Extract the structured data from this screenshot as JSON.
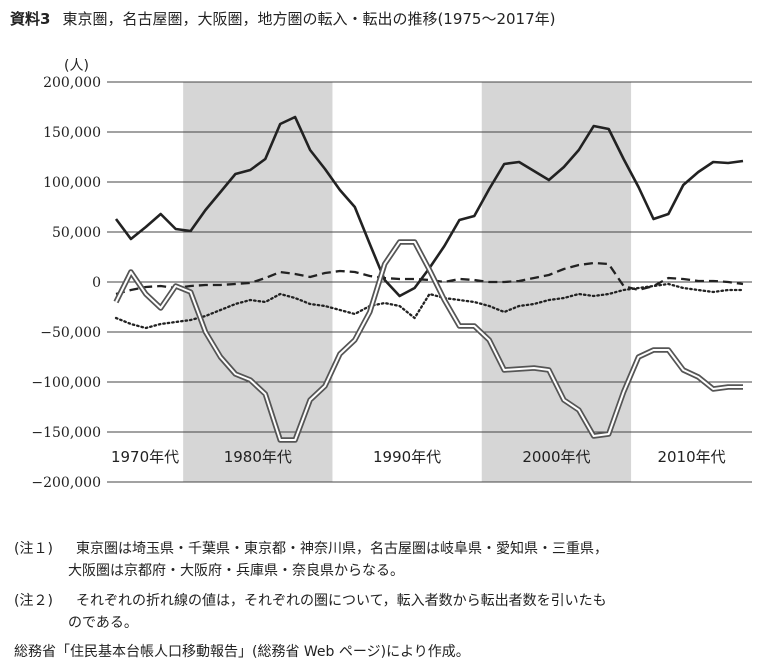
{
  "header": {
    "label": "資料3",
    "title": "東京圏，名古屋圏，大阪圏，地方圏の転入・転出の推移(1975～2017年)"
  },
  "chart_data": {
    "type": "line",
    "ylabel": "(人)",
    "ylim": [
      -200000,
      200000
    ],
    "yticks": [
      200000,
      150000,
      100000,
      50000,
      0,
      -50000,
      -100000,
      -150000,
      -200000
    ],
    "ytick_labels": [
      "200,000",
      "150,000",
      "100,000",
      "50,000",
      "0",
      "−50,000",
      "−100,000",
      "−150,000",
      "−200,000"
    ],
    "xlim": [
      1974.4,
      2017.6
    ],
    "x": [
      1975,
      1976,
      1977,
      1978,
      1979,
      1980,
      1981,
      1982,
      1983,
      1984,
      1985,
      1986,
      1987,
      1988,
      1989,
      1990,
      1991,
      1992,
      1993,
      1994,
      1995,
      1996,
      1997,
      1998,
      1999,
      2000,
      2001,
      2002,
      2003,
      2004,
      2005,
      2006,
      2007,
      2008,
      2009,
      2010,
      2011,
      2012,
      2013,
      2014,
      2015,
      2016,
      2017
    ],
    "decades": [
      {
        "label": "1970年代",
        "from": 1974.4,
        "to": 1979.5
      },
      {
        "label": "1980年代",
        "from": 1979.5,
        "to": 1989.5
      },
      {
        "label": "1990年代",
        "from": 1989.5,
        "to": 1999.5
      },
      {
        "label": "2000年代",
        "from": 1999.5,
        "to": 2009.5
      },
      {
        "label": "2010年代",
        "from": 2009.5,
        "to": 2017.6
      }
    ],
    "shaded": [
      [
        1979.5,
        1989.5
      ],
      [
        1999.5,
        2009.5
      ]
    ],
    "series": [
      {
        "name": "東京圏",
        "style": "solid",
        "values": [
          63000,
          43000,
          55000,
          68000,
          53000,
          51000,
          72000,
          90000,
          108000,
          112000,
          123000,
          158000,
          165000,
          132000,
          113000,
          92000,
          75000,
          38000,
          2000,
          -14000,
          -6000,
          14000,
          36000,
          62000,
          66000,
          93000,
          118000,
          120000,
          111000,
          102000,
          115000,
          132000,
          156000,
          153000,
          123000,
          95000,
          63000,
          68000,
          97000,
          110000,
          120000,
          119000,
          121000
        ]
      },
      {
        "name": "名古屋圏",
        "style": "dashed",
        "values": [
          -12000,
          -8000,
          -5000,
          -4000,
          -6000,
          -4000,
          -3000,
          -3000,
          -2000,
          -1000,
          4000,
          10000,
          8000,
          5000,
          9000,
          11000,
          10000,
          6000,
          4000,
          3000,
          3000,
          2000,
          0,
          3000,
          2000,
          0,
          0,
          1000,
          4000,
          7000,
          13000,
          17000,
          19000,
          18000,
          -4000,
          -8000,
          -4000,
          4000,
          3000,
          1000,
          1000,
          0,
          -2000
        ]
      },
      {
        "name": "大阪圏",
        "style": "dotted",
        "values": [
          -36000,
          -42000,
          -46000,
          -42000,
          -40000,
          -38000,
          -34000,
          -28000,
          -22000,
          -18000,
          -20000,
          -12000,
          -16000,
          -22000,
          -24000,
          -28000,
          -32000,
          -24000,
          -21000,
          -24000,
          -36000,
          -12000,
          -16000,
          -18000,
          -20000,
          -24000,
          -30000,
          -24000,
          -22000,
          -18000,
          -16000,
          -12000,
          -14000,
          -12000,
          -8000,
          -6000,
          -4000,
          -2000,
          -6000,
          -8000,
          -10000,
          -8000,
          -8000
        ]
      },
      {
        "name": "地方圏",
        "style": "double",
        "values": [
          -20000,
          10000,
          -12000,
          -26000,
          -4000,
          -10000,
          -50000,
          -75000,
          -92000,
          -98000,
          -112000,
          -158000,
          -158000,
          -118000,
          -104000,
          -72000,
          -58000,
          -30000,
          18000,
          40000,
          40000,
          12000,
          -18000,
          -44000,
          -44000,
          -58000,
          -88000,
          -87000,
          -86000,
          -88000,
          -118000,
          -128000,
          -154000,
          -152000,
          -110000,
          -75000,
          -68000,
          -68000,
          -88000,
          -95000,
          -107000,
          -105000,
          -105000
        ]
      }
    ]
  },
  "notes": {
    "note1_tag": "(注１)",
    "note1_line1": "東京圏は埼玉県・千葉県・東京都・神奈川県，名古屋圏は岐阜県・愛知県・三重県，",
    "note1_line2": "大阪圏は京都府・大阪府・兵庫県・奈良県からなる。",
    "note2_tag": "(注２)",
    "note2_line1": "それぞれの折れ線の値は，それぞれの圏について，転入者数から転出者数を引いたも",
    "note2_line2": "のである。",
    "source": "総務省「住民基本台帳人口移動報告」(総務省 Web ページ)により作成。"
  }
}
